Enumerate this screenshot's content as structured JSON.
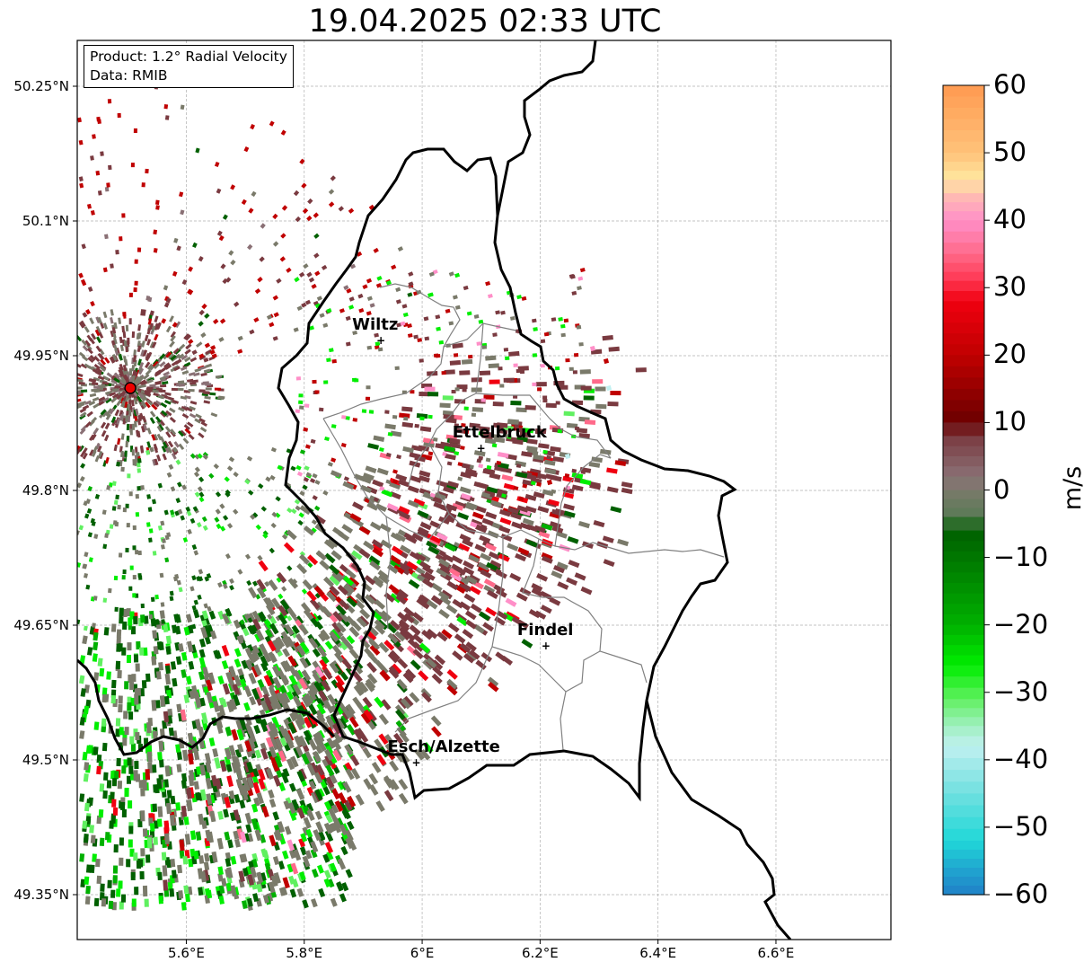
{
  "title": "19.04.2025 02:33 UTC",
  "info_box": {
    "product": "Product: 1.2° Radial Velocity",
    "data": "Data: RMIB"
  },
  "cities": [
    {
      "name": "Wiltz",
      "lon": 5.93,
      "lat": 49.967
    },
    {
      "name": "Ettelbruck",
      "lon": 6.1,
      "lat": 49.847
    },
    {
      "name": "Findel",
      "lon": 6.21,
      "lat": 49.627
    },
    {
      "name": "Esch/Alzette",
      "lon": 5.99,
      "lat": 49.497
    }
  ],
  "radar_site": {
    "lon": 5.505,
    "lat": 49.914
  },
  "axes": {
    "lat_ticks": [
      "50.25°N",
      "50.1°N",
      "49.95°N",
      "49.8°N",
      "49.65°N",
      "49.5°N",
      "49.35°N"
    ],
    "lon_ticks": [
      "5.6°E",
      "5.8°E",
      "6°E",
      "6.2°E",
      "6.4°E",
      "6.6°E"
    ],
    "lat_values": [
      50.25,
      50.1,
      49.95,
      49.8,
      49.65,
      49.5,
      49.35
    ],
    "lon_values": [
      5.6,
      5.8,
      6.0,
      6.2,
      6.4,
      6.6
    ],
    "lon_range": [
      5.415,
      6.795
    ],
    "lat_range": [
      49.3,
      50.301
    ]
  },
  "colorbar": {
    "label": "m/s",
    "min": -60,
    "max": 60,
    "ticks": [
      "60",
      "50",
      "40",
      "30",
      "20",
      "10",
      "0",
      "−10",
      "−20",
      "−30",
      "−40",
      "−50",
      "−60"
    ],
    "stops": [
      {
        "v": 60,
        "c": "#ff9a50"
      },
      {
        "v": 50,
        "c": "#ffc27a"
      },
      {
        "v": 46,
        "c": "#ffe8a0"
      },
      {
        "v": 44,
        "c": "#ffc0b0"
      },
      {
        "v": 40,
        "c": "#ff8fc8"
      },
      {
        "v": 35,
        "c": "#ff6a8a"
      },
      {
        "v": 31,
        "c": "#ff3550"
      },
      {
        "v": 28,
        "c": "#f00010"
      },
      {
        "v": 20,
        "c": "#c00000"
      },
      {
        "v": 10,
        "c": "#6b0000"
      },
      {
        "v": 8,
        "c": "#7a3a40"
      },
      {
        "v": 2,
        "c": "#8a7075"
      },
      {
        "v": 0,
        "c": "#7a7a6a"
      },
      {
        "v": -4,
        "c": "#5a7a55"
      },
      {
        "v": -6,
        "c": "#006000"
      },
      {
        "v": -20,
        "c": "#00b000"
      },
      {
        "v": -26,
        "c": "#00ee00"
      },
      {
        "v": -31,
        "c": "#60f060"
      },
      {
        "v": -35,
        "c": "#a0f0c0"
      },
      {
        "v": -38,
        "c": "#c0f0f0"
      },
      {
        "v": -45,
        "c": "#70e0e0"
      },
      {
        "v": -52,
        "c": "#20d8d8"
      },
      {
        "v": -56,
        "c": "#20a8d0"
      },
      {
        "v": -60,
        "c": "#2080c8"
      }
    ]
  },
  "colors": {
    "border": "#000000",
    "canton": "#808080",
    "grid": "#b0b0b0",
    "radar_marker": "#ee0000"
  }
}
